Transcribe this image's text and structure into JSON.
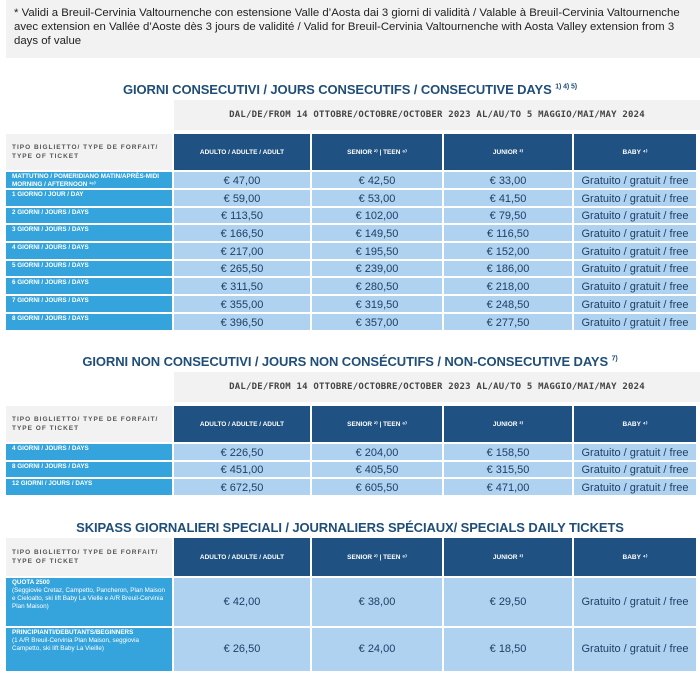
{
  "note": "* Validi a Breuil-Cervinia Valtournenche con estensione Valle d’Aosta dai 3 giorni di validità / Valable à Breuil-Cervinia Valtournenche avec extension en Vallée d’Aoste dès 3 jours de validité / Valid for Breuil-Cervinia Valtournenche with Aosta Valley extension from 3 days of value",
  "headers": {
    "type": "TIPO BIGLIETTO/ TYPE DE FORFAIT/ TYPE OF TICKET",
    "adult": "ADULTO / ADULTE / ADULT",
    "senior": "SENIOR ²⁾ | TEEN ⁶⁾",
    "junior": "JUNIOR ³⁾",
    "baby": "BABY ⁴⁾"
  },
  "date_range": "DAL/DE/FROM 14 OTTOBRE/OCTOBRE/OCTOBER 2023 AL/AU/TO 5 MAGGIO/MAI/MAY 2024",
  "sections": [
    {
      "title": "GIORNI CONSECUTIVI / JOURS CONSECUTIFS / CONSECUTIVE DAYS",
      "title_sup": "1) 4) 5)",
      "rows": [
        {
          "label": "MATTUTINO / POMERIDIANO MATIN/APRÈS-MIDI MORNING / AFTERNOON ¹⁶⁾",
          "adult": "€ 47,00",
          "senior": "€ 42,50",
          "junior": "€ 33,00",
          "baby": "Gratuito / gratuit / free"
        },
        {
          "label": "1 GIORNO / JOUR / DAY",
          "adult": "€ 59,00",
          "senior": "€ 53,00",
          "junior": "€ 41,50",
          "baby": "Gratuito / gratuit / free"
        },
        {
          "label": "2 GIORNI / JOURS / DAYS",
          "adult": "€ 113,50",
          "senior": "€ 102,00",
          "junior": "€ 79,50",
          "baby": "Gratuito / gratuit / free"
        },
        {
          "label": "3 GIORNI / JOURS / DAYS",
          "adult": "€ 166,50",
          "senior": "€ 149,50",
          "junior": "€ 116,50",
          "baby": "Gratuito / gratuit / free"
        },
        {
          "label": "4 GIORNI / JOURS / DAYS",
          "adult": "€ 217,00",
          "senior": "€ 195,50",
          "junior": "€ 152,00",
          "baby": "Gratuito / gratuit / free"
        },
        {
          "label": "5 GIORNI / JOURS / DAYS",
          "adult": "€ 265,50",
          "senior": "€ 239,00",
          "junior": "€ 186,00",
          "baby": "Gratuito / gratuit / free"
        },
        {
          "label": "6 GIORNI / JOURS / DAYS",
          "adult": "€ 311,50",
          "senior": "€ 280,50",
          "junior": "€ 218,00",
          "baby": "Gratuito / gratuit / free"
        },
        {
          "label": "7 GIORNI / JOURS / DAYS",
          "adult": "€ 355,00",
          "senior": "€ 319,50",
          "junior": "€ 248,50",
          "baby": "Gratuito / gratuit / free"
        },
        {
          "label": "8 GIORNI / JOURS / DAYS",
          "adult": "€ 396,50",
          "senior": "€ 357,00",
          "junior": "€ 277,50",
          "baby": "Gratuito / gratuit / free"
        }
      ]
    },
    {
      "title": "GIORNI NON CONSECUTIVI / JOURS NON CONSÉCUTIFS / NON-CONSECUTIVE DAYS",
      "title_sup": "7)",
      "rows": [
        {
          "label": "4 GIORNI / JOURS / DAYS",
          "adult": "€ 226,50",
          "senior": "€ 204,00",
          "junior": "€ 158,50",
          "baby": "Gratuito / gratuit / free"
        },
        {
          "label": "8 GIORNI / JOURS / DAYS",
          "adult": "€ 451,00",
          "senior": "€ 405,50",
          "junior": "€ 315,50",
          "baby": "Gratuito / gratuit / free"
        },
        {
          "label": "12 GIORNI / JOURS / DAYS",
          "adult": "€ 672,50",
          "senior": "€ 605,50",
          "junior": "€ 471,00",
          "baby": "Gratuito / gratuit / free"
        }
      ]
    },
    {
      "title": "SKIPASS GIORNALIERI SPECIALI / JOURNALIERS SPÉCIAUX/ SPECIALS DAILY TICKETS",
      "title_sup": "",
      "rows": [
        {
          "label": "QUOTA 2500",
          "sub": "(Seggiovie Cretaz, Campetto, Pancheron, Plan Maison e Cieloalto, ski lift Baby La Vielle e A/R Breuil-Cervinia Plan Maison)",
          "adult": "€ 42,00",
          "senior": "€ 38,00",
          "junior": "€ 29,50",
          "baby": "Gratuito / gratuit / free"
        },
        {
          "label": "PRINCIPIANTI/DEBUTANTS/BEGINNERS",
          "sub": "(1 A/R Breuil-Cervinia Plan Maison, seggiovia Campetto, ski lift Baby La Vieille)",
          "adult": "€ 26,50",
          "senior": "€ 24,00",
          "junior": "€ 18,50",
          "baby": "Gratuito / gratuit / free"
        }
      ]
    }
  ]
}
